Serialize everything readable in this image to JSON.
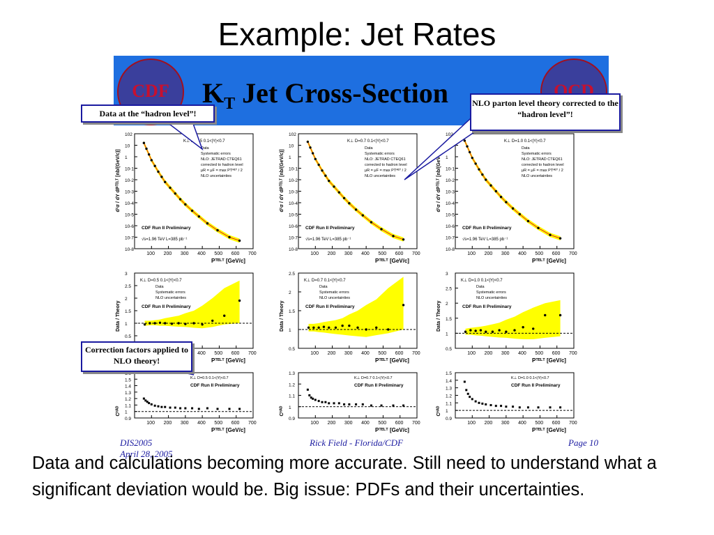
{
  "slide": {
    "title": "Example: Jet Rates",
    "body": "Data and calculations becoming more accurate.  Still need to understand what a significant deviation would be.  Big issue: PDFs and their uncertainties."
  },
  "banner": {
    "title_main": "K",
    "title_sub": "T",
    "title_rest": " Jet Cross-Section",
    "logo_left": "CDF",
    "logo_right": "QCD"
  },
  "callouts": {
    "hadron": "Data at the “hadron level”!",
    "nlo": "NLO parton level theory corrected to the “hadron level”!",
    "correction": "Correction factors applied to NLO theory!"
  },
  "footer": {
    "left": "DIS2005",
    "left2": "April 28, 2005",
    "center": "Rick Field - Florida/CDF",
    "right": "Page 10"
  },
  "colors": {
    "banner": "#1e6fe0",
    "band": "#ffff00",
    "data": "#000000",
    "nlo": "#e02020"
  },
  "chart_data": [
    {
      "type": "scatter",
      "panel": "xsec-D0.5",
      "header": "K⊥  D=0.5   0.1<|Y|<0.7",
      "legend": [
        "Data",
        "Systematic errors",
        "NLO: JETRAD CTEQ61",
        "corrected to hadron level",
        "μR = μF = max PTᴴᴱᵀ / 2",
        "NLO uncertainties"
      ],
      "prelim": "CDF Run II Preliminary",
      "lumi": "√s=1.96 TeV   L=385 pb⁻¹",
      "xlabel": "Pᵀᴱᴸᵀ [GeV/c]",
      "ylabel": "d²σ / dY dPᵀᴱᴸᵀ [nb/(GeV/c)]",
      "xlim": [
        0,
        700
      ],
      "ylim_log10": [
        -8,
        2
      ],
      "x": [
        55,
        70,
        85,
        100,
        120,
        140,
        160,
        180,
        210,
        240,
        270,
        300,
        340,
        380,
        430,
        490,
        560,
        620
      ],
      "y_log10": [
        1.2,
        0.7,
        0.2,
        -0.3,
        -0.8,
        -1.3,
        -1.75,
        -2.2,
        -2.7,
        -3.2,
        -3.7,
        -4.15,
        -4.7,
        -5.2,
        -5.8,
        -6.4,
        -7.0,
        -7.3
      ]
    },
    {
      "type": "scatter",
      "panel": "xsec-D0.7",
      "header": "K⊥  D=0.7   0.1<|Y|<0.7",
      "legend": [
        "Data",
        "Systematic errors",
        "NLO: JETRAD CTEQ61",
        "corrected to hadron level",
        "μR = μF = max PTᴴᴱᵀ / 2",
        "NLO uncertainties"
      ],
      "prelim": "CDF Run II Preliminary",
      "lumi": "√s=1.96 TeV   L=385 pb⁻¹",
      "xlabel": "Pᵀᴱᴸᵀ [GeV/c]",
      "ylabel": "d²σ / dY dPᵀᴱᴸᵀ [nb/(GeV/c)]",
      "xlim": [
        0,
        700
      ],
      "ylim_log10": [
        -8,
        2
      ],
      "x": [
        55,
        70,
        85,
        100,
        120,
        140,
        160,
        180,
        210,
        240,
        270,
        300,
        340,
        380,
        430,
        490,
        560,
        620
      ],
      "y_log10": [
        1.3,
        0.8,
        0.3,
        -0.2,
        -0.7,
        -1.2,
        -1.65,
        -2.1,
        -2.6,
        -3.1,
        -3.6,
        -4.05,
        -4.6,
        -5.1,
        -5.7,
        -6.3,
        -6.9,
        -7.2
      ]
    },
    {
      "type": "scatter",
      "panel": "xsec-D1.0",
      "header": "K⊥  D=1.0   0.1<|Y|<0.7",
      "legend": [
        "Data",
        "Systematic errors",
        "NLO: JETRAD CTEQ61",
        "corrected to hadron level",
        "μR = μF = max PTᴴᴱᵀ / 2",
        "NLO uncertainties"
      ],
      "prelim": "CDF Run II Preliminary",
      "lumi": "√s=1.96 TeV   L=385 pb⁻¹",
      "xlabel": "Pᵀᴱᴸᵀ [GeV/c]",
      "ylabel": "d²σ / dY dPᵀᴱᴸᵀ [nb/(GeV/c)]",
      "xlim": [
        0,
        700
      ],
      "ylim_log10": [
        -8,
        2
      ],
      "x": [
        55,
        70,
        85,
        100,
        120,
        140,
        160,
        180,
        210,
        240,
        270,
        300,
        340,
        380,
        430,
        490,
        560,
        620
      ],
      "y_log10": [
        1.4,
        0.9,
        0.4,
        -0.1,
        -0.6,
        -1.1,
        -1.55,
        -2.0,
        -2.5,
        -3.0,
        -3.5,
        -3.95,
        -4.5,
        -5.0,
        -5.6,
        -6.2,
        -6.8,
        -7.1
      ]
    },
    {
      "type": "scatter",
      "panel": "ratio-D0.5",
      "header": "K⊥  D=0.5   0.1<|Y|<0.7",
      "legend": [
        "Data",
        "Systematic errors",
        "NLO uncertainties"
      ],
      "prelim": "CDF Run II Preliminary",
      "xlabel": "Pᵀᴱᴸᵀ [GeV/c]",
      "ylabel": "Data / Theory",
      "xlim": [
        0,
        700
      ],
      "ylim": [
        0,
        3
      ],
      "x": [
        60,
        90,
        120,
        150,
        180,
        220,
        260,
        300,
        350,
        400,
        460,
        530,
        620
      ],
      "y": [
        0.95,
        1.0,
        1.0,
        1.02,
        1.0,
        0.98,
        1.0,
        0.97,
        1.0,
        0.95,
        1.1,
        1.3,
        1.9
      ],
      "band_hi": [
        1.1,
        1.1,
        1.12,
        1.15,
        1.2,
        1.25,
        1.3,
        1.4,
        1.5,
        1.7,
        2.0,
        2.4,
        2.7
      ],
      "band_lo": [
        0.9,
        0.92,
        0.92,
        0.9,
        0.9,
        0.88,
        0.86,
        0.85,
        0.82,
        0.8,
        0.85,
        0.95,
        1.0
      ]
    },
    {
      "type": "scatter",
      "panel": "ratio-D0.7",
      "header": "K⊥  D=0.7   0.1<|Y|<0.7",
      "legend": [
        "Data",
        "Systematic errors",
        "NLO uncertainties"
      ],
      "prelim": "CDF Run II Preliminary",
      "xlabel": "Pᵀᴱᴸᵀ [GeV/c]",
      "ylabel": "Data / Theory",
      "xlim": [
        0,
        700
      ],
      "ylim": [
        0.5,
        2.5
      ],
      "x": [
        60,
        90,
        120,
        150,
        180,
        220,
        260,
        300,
        350,
        400,
        460,
        530,
        620
      ],
      "y": [
        1.05,
        1.05,
        1.05,
        1.07,
        1.05,
        1.05,
        1.1,
        1.1,
        1.05,
        1.0,
        1.05,
        1.0,
        1.65
      ],
      "band_hi": [
        1.15,
        1.15,
        1.17,
        1.2,
        1.22,
        1.25,
        1.3,
        1.4,
        1.5,
        1.65,
        1.8,
        2.1,
        2.4
      ],
      "band_lo": [
        0.95,
        0.95,
        0.93,
        0.92,
        0.9,
        0.88,
        0.86,
        0.84,
        0.82,
        0.8,
        0.85,
        0.9,
        1.0
      ]
    },
    {
      "type": "scatter",
      "panel": "ratio-D1.0",
      "header": "K⊥  D=1.0   0.1<|Y|<0.7",
      "legend": [
        "Data",
        "Systematic errors",
        "NLO uncertainties"
      ],
      "prelim": "CDF Run II Preliminary",
      "xlabel": "Pᵀᴱᴸᵀ [GeV/c]",
      "ylabel": "Data / Theory",
      "xlim": [
        0,
        700
      ],
      "ylim": [
        0.5,
        3
      ],
      "x": [
        60,
        90,
        120,
        150,
        180,
        220,
        260,
        300,
        350,
        400,
        460,
        530,
        620
      ],
      "y": [
        1.05,
        1.1,
        1.08,
        1.1,
        1.05,
        1.05,
        1.1,
        1.05,
        1.1,
        1.2,
        1.15,
        1.6,
        1.6
      ],
      "band_hi": [
        1.15,
        1.18,
        1.2,
        1.22,
        1.25,
        1.3,
        1.35,
        1.45,
        1.55,
        1.7,
        1.85,
        2.0,
        2.1
      ],
      "band_lo": [
        0.95,
        0.95,
        0.93,
        0.92,
        0.9,
        0.88,
        0.86,
        0.85,
        0.82,
        0.8,
        0.8,
        0.85,
        0.9
      ]
    },
    {
      "type": "scatter",
      "panel": "chad-D0.5",
      "header": "K⊥  D=0.5   0.1<|Y|<0.7",
      "prelim": "CDF Run II Preliminary",
      "xlabel": "Pᵀᴱᴸᵀ [GeV/c]",
      "ylabel": "Cᴴᴬᴰ",
      "xlim": [
        0,
        700
      ],
      "ylim": [
        0.9,
        1.6
      ],
      "x": [
        55,
        65,
        75,
        85,
        100,
        120,
        140,
        160,
        180,
        210,
        240,
        270,
        300,
        340,
        380,
        430,
        490,
        560,
        620
      ],
      "y": [
        1.2,
        1.17,
        1.15,
        1.13,
        1.11,
        1.09,
        1.08,
        1.07,
        1.07,
        1.06,
        1.06,
        1.05,
        1.05,
        1.05,
        1.04,
        1.05,
        1.04,
        1.04,
        1.04
      ]
    },
    {
      "type": "scatter",
      "panel": "chad-D0.7",
      "header": "K⊥  D=0.7   0.1<|Y|<0.7",
      "prelim": "CDF Run II Preliminary",
      "xlabel": "Pᵀᴱᴸᵀ [GeV/c]",
      "ylabel": "Cᴴᴬᴰ",
      "xlim": [
        0,
        700
      ],
      "ylim": [
        0.9,
        1.3
      ],
      "x": [
        55,
        65,
        75,
        85,
        100,
        120,
        140,
        160,
        180,
        210,
        240,
        270,
        300,
        340,
        380,
        430,
        490,
        560,
        620
      ],
      "y": [
        1.15,
        1.1,
        1.08,
        1.07,
        1.06,
        1.05,
        1.04,
        1.04,
        1.03,
        1.03,
        1.03,
        1.02,
        1.02,
        1.02,
        1.02,
        1.01,
        1.01,
        1.01,
        1.01
      ]
    },
    {
      "type": "scatter",
      "panel": "chad-D1.0",
      "header": "K⊥  D=1.0   0.1<|Y|<0.7",
      "prelim": "CDF Run II Preliminary",
      "xlabel": "Pᵀᴱᴸᵀ [GeV/c]",
      "ylabel": "Cᴴᴬᴰ",
      "xlim": [
        0,
        700
      ],
      "ylim": [
        0.9,
        1.5
      ],
      "x": [
        55,
        65,
        75,
        85,
        100,
        120,
        140,
        160,
        180,
        210,
        240,
        270,
        300,
        340,
        380,
        430,
        490,
        560,
        620
      ],
      "y": [
        1.38,
        1.27,
        1.22,
        1.18,
        1.15,
        1.12,
        1.1,
        1.09,
        1.08,
        1.07,
        1.06,
        1.06,
        1.05,
        1.05,
        1.04,
        1.04,
        1.04,
        1.04,
        1.04
      ]
    }
  ]
}
